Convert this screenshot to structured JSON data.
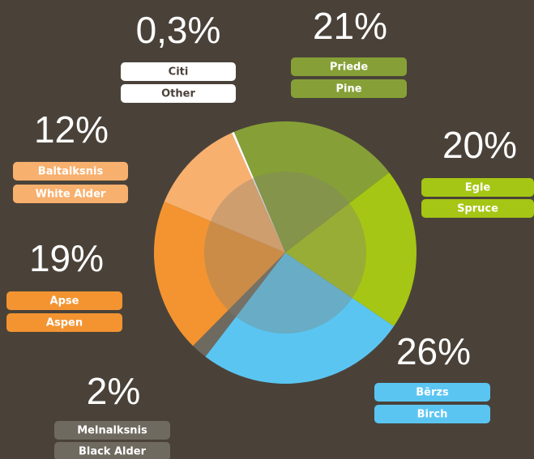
{
  "chart_data": {
    "type": "pie",
    "categories": [
      "Priede",
      "Egle",
      "Bērzs",
      "Melnalksnis",
      "Apse",
      "Baltalksnis",
      "Citi"
    ],
    "categories_en": [
      "Pine",
      "Spruce",
      "Birch",
      "Black Alder",
      "Aspen",
      "White Alder",
      "Other"
    ],
    "values": [
      21,
      20,
      26,
      2,
      19,
      12,
      0.3
    ],
    "value_labels": [
      "21%",
      "20%",
      "26%",
      "2%",
      "19%",
      "12%",
      "0,3%"
    ],
    "colors": [
      "#86a037",
      "#a5c614",
      "#5bc5f2",
      "#6f6a60",
      "#f39431",
      "#f8b06e",
      "#ffffff"
    ]
  }
}
